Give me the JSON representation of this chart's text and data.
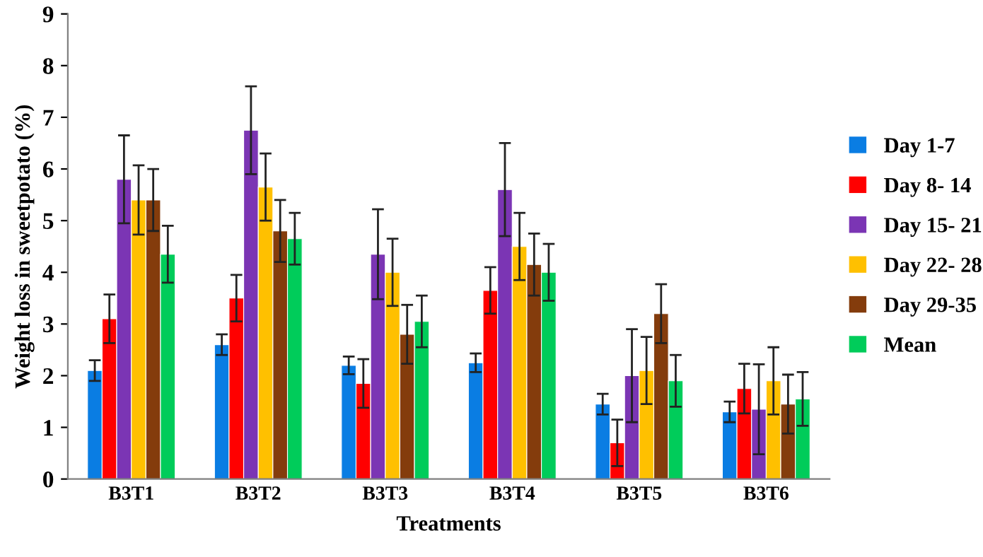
{
  "chart_data": {
    "type": "bar",
    "xlabel": "Treatments",
    "ylabel": "Weight loss in sweetpotato (%)",
    "categories": [
      "B3T1",
      "B3T2",
      "B3T3",
      "B3T4",
      "B3T5",
      "B3T6"
    ],
    "ylim": [
      0,
      9
    ],
    "yticks": [
      0,
      1,
      2,
      3,
      4,
      5,
      6,
      7,
      8,
      9
    ],
    "grid": false,
    "legend": "right",
    "series": [
      {
        "name": "Day 1-7",
        "color": "#0a7de3",
        "values": [
          2.1,
          2.6,
          2.2,
          2.25,
          1.45,
          1.3
        ],
        "errors": [
          0.2,
          0.2,
          0.17,
          0.18,
          0.2,
          0.2
        ]
      },
      {
        "name": "Day 8- 14",
        "color": "#ff0000",
        "values": [
          3.1,
          3.5,
          1.85,
          3.65,
          0.7,
          1.75
        ],
        "errors": [
          0.47,
          0.45,
          0.47,
          0.45,
          0.45,
          0.48
        ]
      },
      {
        "name": "Day 15- 21",
        "color": "#7b35b4",
        "values": [
          5.8,
          6.75,
          4.35,
          5.6,
          2.0,
          1.35
        ],
        "errors": [
          0.85,
          0.85,
          0.87,
          0.9,
          0.9,
          0.87
        ]
      },
      {
        "name": "Day 22- 28",
        "color": "#ffc000",
        "values": [
          5.4,
          5.65,
          4.0,
          4.5,
          2.1,
          1.9
        ],
        "errors": [
          0.67,
          0.65,
          0.65,
          0.65,
          0.65,
          0.65
        ]
      },
      {
        "name": "Day 29-35",
        "color": "#843c0c",
        "values": [
          5.4,
          4.8,
          2.8,
          4.15,
          3.2,
          1.45
        ],
        "errors": [
          0.6,
          0.6,
          0.57,
          0.6,
          0.57,
          0.57
        ]
      },
      {
        "name": "Mean",
        "color": "#00cc5a",
        "values": [
          4.35,
          4.65,
          3.05,
          4.0,
          1.9,
          1.55
        ],
        "errors": [
          0.55,
          0.5,
          0.5,
          0.55,
          0.5,
          0.52
        ]
      }
    ]
  }
}
